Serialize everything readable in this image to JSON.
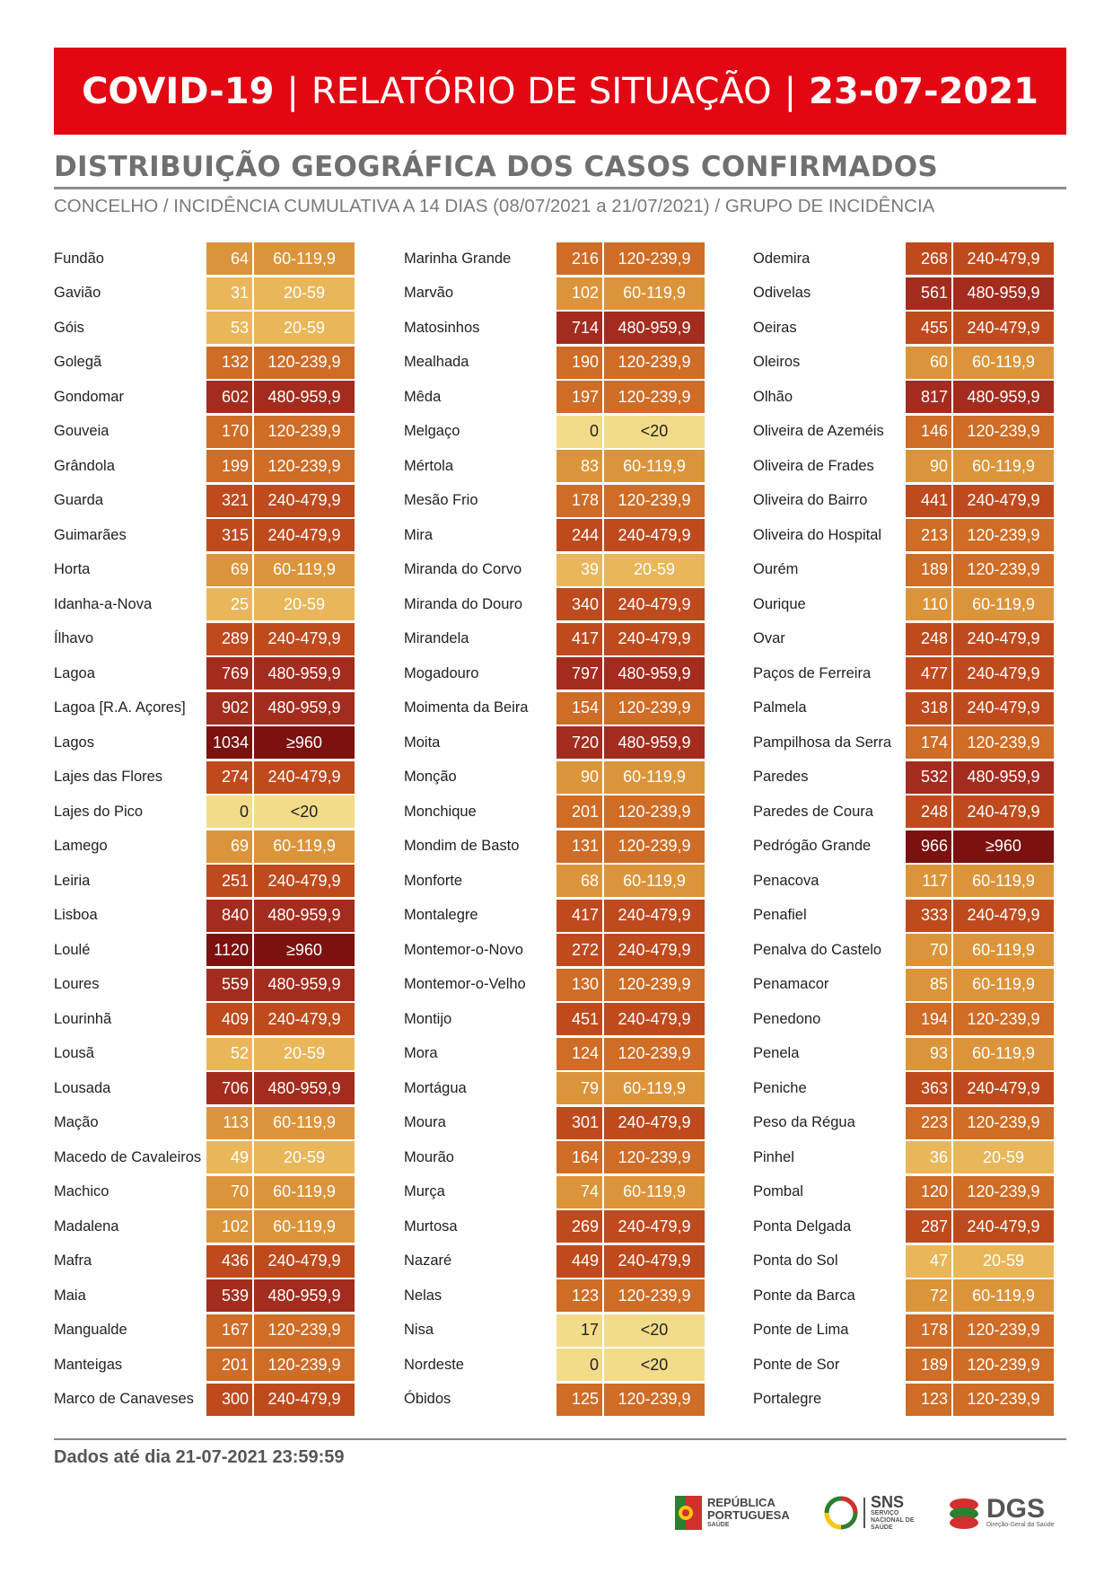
{
  "header": {
    "title_part1": "COVID-19",
    "title_part2": "RELATÓRIO DE SITUAÇÃO",
    "title_part3": "23-07-2021",
    "separator": "|"
  },
  "section": {
    "title": "DISTRIBUIÇÃO GEOGRÁFICA DOS CASOS CONFIRMADOS",
    "subtitle": "CONCELHO / INCIDÊNCIA CUMULATIVA A 14 DIAS (08/07/2021 a 21/07/2021) / GRUPO DE INCIDÊNCIA"
  },
  "group_colors": {
    "<20": "#f2dc8a",
    "20-59": "#e9b75a",
    "60-119,9": "#dc943a",
    "120-239,9": "#cf6c26",
    "240-479,9": "#bf4a1e",
    "480-959,9": "#a42c1e",
    "≥960": "#7b1210"
  },
  "columns": [
    [
      {
        "name": "Fundão",
        "value": "64",
        "group": "60-119,9"
      },
      {
        "name": "Gavião",
        "value": "31",
        "group": "20-59"
      },
      {
        "name": "Góis",
        "value": "53",
        "group": "20-59"
      },
      {
        "name": "Golegã",
        "value": "132",
        "group": "120-239,9"
      },
      {
        "name": "Gondomar",
        "value": "602",
        "group": "480-959,9"
      },
      {
        "name": "Gouveia",
        "value": "170",
        "group": "120-239,9"
      },
      {
        "name": "Grândola",
        "value": "199",
        "group": "120-239,9"
      },
      {
        "name": "Guarda",
        "value": "321",
        "group": "240-479,9"
      },
      {
        "name": "Guimarães",
        "value": "315",
        "group": "240-479,9"
      },
      {
        "name": "Horta",
        "value": "69",
        "group": "60-119,9"
      },
      {
        "name": "Idanha-a-Nova",
        "value": "25",
        "group": "20-59"
      },
      {
        "name": "Ílhavo",
        "value": "289",
        "group": "240-479,9"
      },
      {
        "name": "Lagoa",
        "value": "769",
        "group": "480-959,9"
      },
      {
        "name": "Lagoa [R.A. Açores]",
        "value": "902",
        "group": "480-959,9"
      },
      {
        "name": "Lagos",
        "value": "1034",
        "group": "≥960"
      },
      {
        "name": "Lajes das Flores",
        "value": "274",
        "group": "240-479,9"
      },
      {
        "name": "Lajes do Pico",
        "value": "0",
        "group": "<20"
      },
      {
        "name": "Lamego",
        "value": "69",
        "group": "60-119,9"
      },
      {
        "name": "Leiria",
        "value": "251",
        "group": "240-479,9"
      },
      {
        "name": "Lisboa",
        "value": "840",
        "group": "480-959,9"
      },
      {
        "name": "Loulé",
        "value": "1120",
        "group": "≥960"
      },
      {
        "name": "Loures",
        "value": "559",
        "group": "480-959,9"
      },
      {
        "name": "Lourinhã",
        "value": "409",
        "group": "240-479,9"
      },
      {
        "name": "Lousã",
        "value": "52",
        "group": "20-59"
      },
      {
        "name": "Lousada",
        "value": "706",
        "group": "480-959,9"
      },
      {
        "name": "Mação",
        "value": "113",
        "group": "60-119,9"
      },
      {
        "name": "Macedo de Cavaleiros",
        "value": "49",
        "group": "20-59"
      },
      {
        "name": "Machico",
        "value": "70",
        "group": "60-119,9"
      },
      {
        "name": "Madalena",
        "value": "102",
        "group": "60-119,9"
      },
      {
        "name": "Mafra",
        "value": "436",
        "group": "240-479,9"
      },
      {
        "name": "Maia",
        "value": "539",
        "group": "480-959,9"
      },
      {
        "name": "Mangualde",
        "value": "167",
        "group": "120-239,9"
      },
      {
        "name": "Manteigas",
        "value": "201",
        "group": "120-239,9"
      },
      {
        "name": "Marco de Canaveses",
        "value": "300",
        "group": "240-479,9"
      }
    ],
    [
      {
        "name": "Marinha Grande",
        "value": "216",
        "group": "120-239,9"
      },
      {
        "name": "Marvão",
        "value": "102",
        "group": "60-119,9"
      },
      {
        "name": "Matosinhos",
        "value": "714",
        "group": "480-959,9"
      },
      {
        "name": "Mealhada",
        "value": "190",
        "group": "120-239,9"
      },
      {
        "name": "Mêda",
        "value": "197",
        "group": "120-239,9"
      },
      {
        "name": "Melgaço",
        "value": "0",
        "group": "<20"
      },
      {
        "name": "Mértola",
        "value": "83",
        "group": "60-119,9"
      },
      {
        "name": "Mesão Frio",
        "value": "178",
        "group": "120-239,9"
      },
      {
        "name": "Mira",
        "value": "244",
        "group": "240-479,9"
      },
      {
        "name": "Miranda do Corvo",
        "value": "39",
        "group": "20-59"
      },
      {
        "name": "Miranda do Douro",
        "value": "340",
        "group": "240-479,9"
      },
      {
        "name": "Mirandela",
        "value": "417",
        "group": "240-479,9"
      },
      {
        "name": "Mogadouro",
        "value": "797",
        "group": "480-959,9"
      },
      {
        "name": "Moimenta da Beira",
        "value": "154",
        "group": "120-239,9"
      },
      {
        "name": "Moita",
        "value": "720",
        "group": "480-959,9"
      },
      {
        "name": "Monção",
        "value": "90",
        "group": "60-119,9"
      },
      {
        "name": "Monchique",
        "value": "201",
        "group": "120-239,9"
      },
      {
        "name": "Mondim de Basto",
        "value": "131",
        "group": "120-239,9"
      },
      {
        "name": "Monforte",
        "value": "68",
        "group": "60-119,9"
      },
      {
        "name": "Montalegre",
        "value": "417",
        "group": "240-479,9"
      },
      {
        "name": "Montemor-o-Novo",
        "value": "272",
        "group": "240-479,9"
      },
      {
        "name": "Montemor-o-Velho",
        "value": "130",
        "group": "120-239,9"
      },
      {
        "name": "Montijo",
        "value": "451",
        "group": "240-479,9"
      },
      {
        "name": "Mora",
        "value": "124",
        "group": "120-239,9"
      },
      {
        "name": "Mortágua",
        "value": "79",
        "group": "60-119,9"
      },
      {
        "name": "Moura",
        "value": "301",
        "group": "240-479,9"
      },
      {
        "name": "Mourão",
        "value": "164",
        "group": "120-239,9"
      },
      {
        "name": "Murça",
        "value": "74",
        "group": "60-119,9"
      },
      {
        "name": "Murtosa",
        "value": "269",
        "group": "240-479,9"
      },
      {
        "name": "Nazaré",
        "value": "449",
        "group": "240-479,9"
      },
      {
        "name": "Nelas",
        "value": "123",
        "group": "120-239,9"
      },
      {
        "name": "Nisa",
        "value": "17",
        "group": "<20"
      },
      {
        "name": "Nordeste",
        "value": "0",
        "group": "<20"
      },
      {
        "name": "Óbidos",
        "value": "125",
        "group": "120-239,9"
      }
    ],
    [
      {
        "name": "Odemira",
        "value": "268",
        "group": "240-479,9"
      },
      {
        "name": "Odivelas",
        "value": "561",
        "group": "480-959,9"
      },
      {
        "name": "Oeiras",
        "value": "455",
        "group": "240-479,9"
      },
      {
        "name": "Oleiros",
        "value": "60",
        "group": "60-119,9"
      },
      {
        "name": "Olhão",
        "value": "817",
        "group": "480-959,9"
      },
      {
        "name": "Oliveira de Azeméis",
        "value": "146",
        "group": "120-239,9"
      },
      {
        "name": "Oliveira de Frades",
        "value": "90",
        "group": "60-119,9"
      },
      {
        "name": "Oliveira do Bairro",
        "value": "441",
        "group": "240-479,9"
      },
      {
        "name": "Oliveira do Hospital",
        "value": "213",
        "group": "120-239,9"
      },
      {
        "name": "Ourém",
        "value": "189",
        "group": "120-239,9"
      },
      {
        "name": "Ourique",
        "value": "110",
        "group": "60-119,9"
      },
      {
        "name": "Ovar",
        "value": "248",
        "group": "240-479,9"
      },
      {
        "name": "Paços de Ferreira",
        "value": "477",
        "group": "240-479,9"
      },
      {
        "name": "Palmela",
        "value": "318",
        "group": "240-479,9"
      },
      {
        "name": "Pampilhosa da Serra",
        "value": "174",
        "group": "120-239,9"
      },
      {
        "name": "Paredes",
        "value": "532",
        "group": "480-959,9"
      },
      {
        "name": "Paredes de Coura",
        "value": "248",
        "group": "240-479,9"
      },
      {
        "name": "Pedrógão Grande",
        "value": "966",
        "group": "≥960"
      },
      {
        "name": "Penacova",
        "value": "117",
        "group": "60-119,9"
      },
      {
        "name": "Penafiel",
        "value": "333",
        "group": "240-479,9"
      },
      {
        "name": "Penalva do Castelo",
        "value": "70",
        "group": "60-119,9"
      },
      {
        "name": "Penamacor",
        "value": "85",
        "group": "60-119,9"
      },
      {
        "name": "Penedono",
        "value": "194",
        "group": "120-239,9"
      },
      {
        "name": "Penela",
        "value": "93",
        "group": "60-119,9"
      },
      {
        "name": "Peniche",
        "value": "363",
        "group": "240-479,9"
      },
      {
        "name": "Peso da Régua",
        "value": "223",
        "group": "120-239,9"
      },
      {
        "name": "Pinhel",
        "value": "36",
        "group": "20-59"
      },
      {
        "name": "Pombal",
        "value": "120",
        "group": "120-239,9"
      },
      {
        "name": "Ponta Delgada",
        "value": "287",
        "group": "240-479,9"
      },
      {
        "name": "Ponta do Sol",
        "value": "47",
        "group": "20-59"
      },
      {
        "name": "Ponte da Barca",
        "value": "72",
        "group": "60-119,9"
      },
      {
        "name": "Ponte de Lima",
        "value": "178",
        "group": "120-239,9"
      },
      {
        "name": "Ponte de Sor",
        "value": "189",
        "group": "120-239,9"
      },
      {
        "name": "Portalegre",
        "value": "123",
        "group": "120-239,9"
      }
    ]
  ],
  "footer": {
    "text": "Dados até dia 21-07-2021 23:59:59"
  },
  "logos": {
    "republica_line1": "REPÚBLICA",
    "republica_line2": "PORTUGUESA",
    "republica_line3": "SAÚDE",
    "sns": "SNS",
    "sns_sub": "SERVIÇO NACIONAL DE SAÚDE",
    "dgs": "DGS",
    "dgs_sub": "Direção-Geral da Saúde"
  }
}
